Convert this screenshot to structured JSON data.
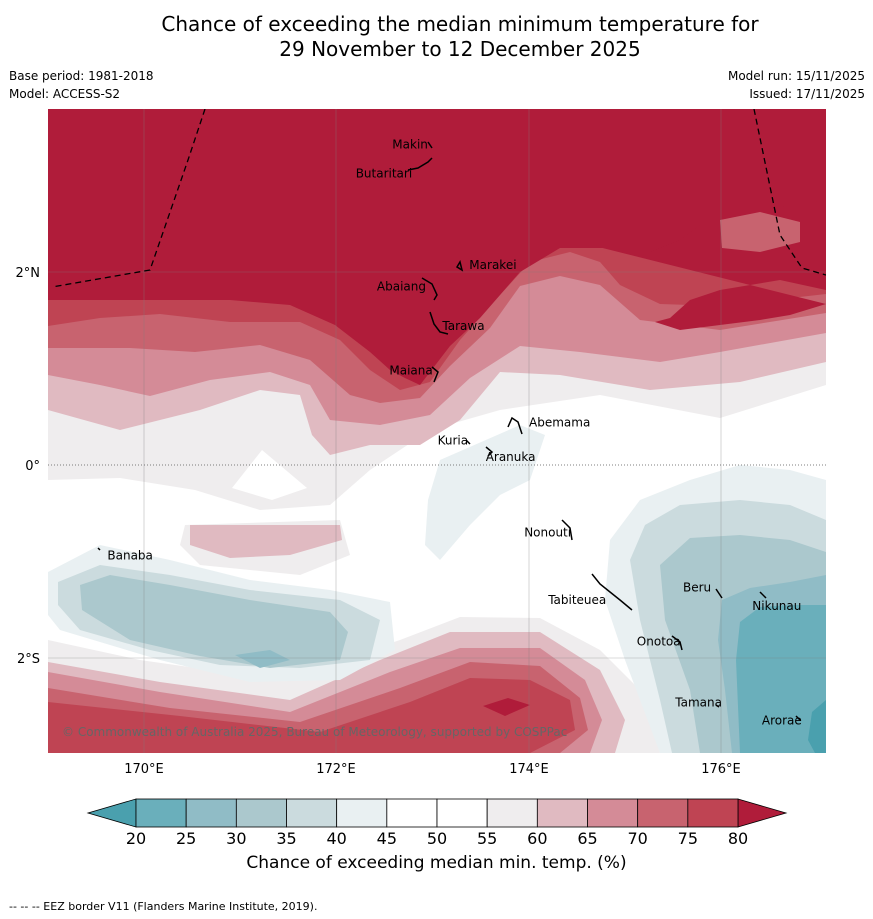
{
  "title_line1": "Chance of exceeding the median minimum temperature for",
  "title_line2": "29 November to 12 December 2025",
  "base_period": "Base period: 1981-2018",
  "model": "Model: ACCESS-S2",
  "model_run": "Model run: 15/11/2025",
  "issued": "Issued: 17/11/2025",
  "copyright": "© Commonwealth of Australia 2025, Bureau of Meteorology, supported by COSPPac",
  "axes": {
    "x_ticks": [
      "170°E",
      "172°E",
      "174°E",
      "176°E"
    ],
    "y_ticks": [
      "2°N",
      "0°",
      "2°S"
    ]
  },
  "places": [
    {
      "name": "Makin",
      "lon": 172.58,
      "lat": 3.28
    },
    {
      "name": "Butaritari",
      "lon": 172.2,
      "lat": 2.98
    },
    {
      "name": "Marakei",
      "lon": 173.38,
      "lat": 2.03
    },
    {
      "name": "Abaiang",
      "lon": 172.42,
      "lat": 1.81
    },
    {
      "name": "Tarawa",
      "lon": 173.1,
      "lat": 1.4
    },
    {
      "name": "Maiana",
      "lon": 172.55,
      "lat": 0.94
    },
    {
      "name": "Abemama",
      "lon": 174.0,
      "lat": 0.4
    },
    {
      "name": "Kuria",
      "lon": 173.05,
      "lat": 0.21
    },
    {
      "name": "Aranuka",
      "lon": 173.55,
      "lat": 0.04
    },
    {
      "name": "Nonouti",
      "lon": 173.95,
      "lat": -0.74
    },
    {
      "name": "Banaba",
      "lon": 169.62,
      "lat": -0.98
    },
    {
      "name": "Tabiteuea",
      "lon": 174.2,
      "lat": -1.44
    },
    {
      "name": "Beru",
      "lon": 175.6,
      "lat": -1.31
    },
    {
      "name": "Nikunau",
      "lon": 176.32,
      "lat": -1.5
    },
    {
      "name": "Onotoa",
      "lon": 175.12,
      "lat": -1.87
    },
    {
      "name": "Tamana",
      "lon": 175.52,
      "lat": -2.5
    },
    {
      "name": "Arorae",
      "lon": 176.42,
      "lat": -2.69
    }
  ],
  "colorbar": {
    "ticks": [
      "20",
      "25",
      "30",
      "35",
      "40",
      "45",
      "50",
      "55",
      "60",
      "65",
      "70",
      "75",
      "80"
    ],
    "colors": [
      "#6aafbb",
      "#90bcc6",
      "#abc8cd",
      "#cbdbde",
      "#e9f0f2",
      "#ffffff",
      "#ffffff",
      "#efedee",
      "#e0bac1",
      "#d48b97",
      "#c8636f",
      "#bf4453"
    ],
    "low_color": "#4aa0ae",
    "high_color": "#b01c3a",
    "label": "Chance of exceeding median min. temp. (%)"
  },
  "footer": "-- -- -- EEZ border V11 (Flanders Marine Institute, 2019)."
}
